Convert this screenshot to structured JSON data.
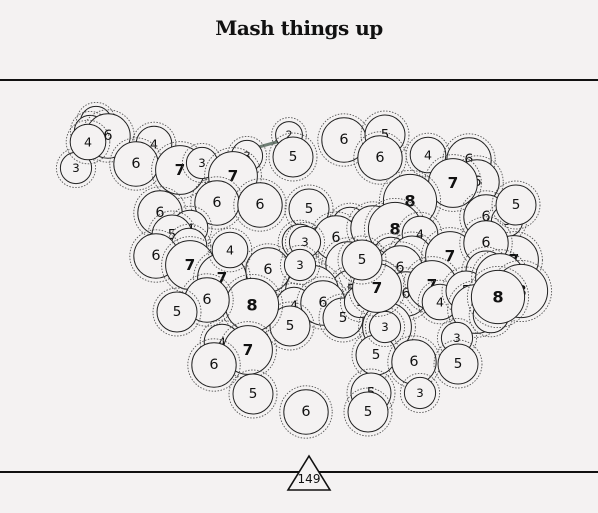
{
  "title": "Mash things up",
  "moves_left": "149",
  "colors": {
    "stroke": "#222222",
    "halo": "#555555",
    "background": "#f4f2f2",
    "bridge": "#6f7f74"
  },
  "nodes": [
    {
      "v": 3
    },
    {
      "v": 3
    },
    {
      "v": 6
    },
    {
      "v": 4
    },
    {
      "v": 3
    },
    {
      "v": 4
    },
    {
      "v": 6
    },
    {
      "v": 7
    },
    {
      "v": 3
    },
    {
      "v": 3
    },
    {
      "v": 7
    },
    {
      "v": 2
    },
    {
      "v": 5
    },
    {
      "v": 6
    },
    {
      "v": 5
    },
    {
      "v": 6
    },
    {
      "v": 4
    },
    {
      "v": 6
    },
    {
      "v": 6
    },
    {
      "v": 7
    },
    {
      "v": 8
    },
    {
      "v": 6
    },
    {
      "v": 6
    },
    {
      "v": 5
    },
    {
      "v": 6
    },
    {
      "v": 4
    },
    {
      "v": 5
    },
    {
      "v": 4
    },
    {
      "v": 6
    },
    {
      "v": 7
    },
    {
      "v": 6
    },
    {
      "v": 7
    },
    {
      "v": 4
    },
    {
      "v": 4
    },
    {
      "v": 4
    },
    {
      "v": 6
    },
    {
      "v": 6
    },
    {
      "v": 8
    },
    {
      "v": 4
    },
    {
      "v": 6
    },
    {
      "v": 3
    },
    {
      "v": 5
    },
    {
      "v": 7
    },
    {
      "v": 4
    },
    {
      "v": 5
    },
    {
      "v": 6
    },
    {
      "v": 4
    },
    {
      "v": 6
    },
    {
      "v": 5
    },
    {
      "v": 7
    },
    {
      "v": 6
    },
    {
      "v": 5
    },
    {
      "v": 5
    },
    {
      "v": 6
    },
    {
      "v": 6
    },
    {
      "v": 7
    },
    {
      "v": 4
    },
    {
      "v": 5
    },
    {
      "v": 7
    },
    {
      "v": 8
    },
    {
      "v": 7
    },
    {
      "v": 4
    },
    {
      "v": 8
    },
    {
      "v": 8
    },
    {
      "v": 4
    },
    {
      "v": 6
    },
    {
      "v": 5
    },
    {
      "v": 3
    },
    {
      "v": 7
    },
    {
      "v": 5
    },
    {
      "v": 8
    },
    {
      "v": 6
    },
    {
      "v": 5
    },
    {
      "v": 4
    },
    {
      "v": 7
    },
    {
      "v": 6
    },
    {
      "v": 5
    },
    {
      "v": 6
    },
    {
      "v": 3
    },
    {
      "v": 5
    },
    {
      "v": 5
    },
    {
      "v": 6
    },
    {
      "v": 5
    },
    {
      "v": 3
    },
    {
      "v": 5
    },
    {
      "v": 3
    },
    {
      "v": 7
    },
    {
      "v": 3
    },
    {
      "v": 5
    },
    {
      "v": 3
    }
  ]
}
